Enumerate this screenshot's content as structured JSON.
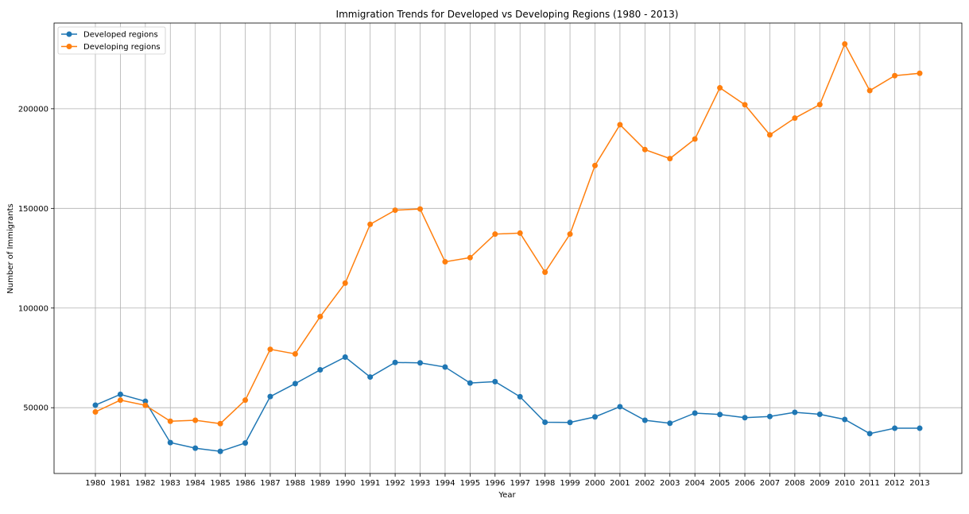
{
  "chart_data": {
    "type": "line",
    "title": "Immigration Trends for Developed vs Developing Regions (1980 - 2013)",
    "xlabel": "Year",
    "ylabel": "Number of Immigrants",
    "x": [
      1980,
      1981,
      1982,
      1983,
      1984,
      1985,
      1986,
      1987,
      1988,
      1989,
      1990,
      1991,
      1992,
      1993,
      1994,
      1995,
      1996,
      1997,
      1998,
      1999,
      2000,
      2001,
      2002,
      2003,
      2004,
      2005,
      2006,
      2007,
      2008,
      2009,
      2010,
      2011,
      2012,
      2013
    ],
    "ylim": [
      17000,
      243000
    ],
    "yticks": [
      50000,
      100000,
      150000,
      200000
    ],
    "grid": true,
    "legend_position": "top-left",
    "series": [
      {
        "name": "Developed regions",
        "color": "#1f77b4",
        "values": [
          51300,
          56700,
          53200,
          32500,
          29700,
          28100,
          32300,
          55600,
          62100,
          69000,
          75400,
          65400,
          72700,
          72500,
          70400,
          62400,
          63100,
          55500,
          42700,
          42600,
          45400,
          50500,
          43700,
          42200,
          47300,
          46600,
          45000,
          45600,
          47700,
          46700,
          44100,
          37000,
          39700,
          39700
        ]
      },
      {
        "name": "Developing regions",
        "color": "#ff7f0e",
        "values": [
          47900,
          53800,
          51200,
          43200,
          43700,
          42000,
          53800,
          79300,
          77000,
          95700,
          112500,
          142000,
          149100,
          149700,
          123200,
          125300,
          137100,
          137600,
          118000,
          137100,
          171500,
          192000,
          179500,
          175000,
          184800,
          210500,
          202000,
          186900,
          195300,
          202100,
          232500,
          209100,
          216600,
          217800
        ]
      }
    ]
  }
}
